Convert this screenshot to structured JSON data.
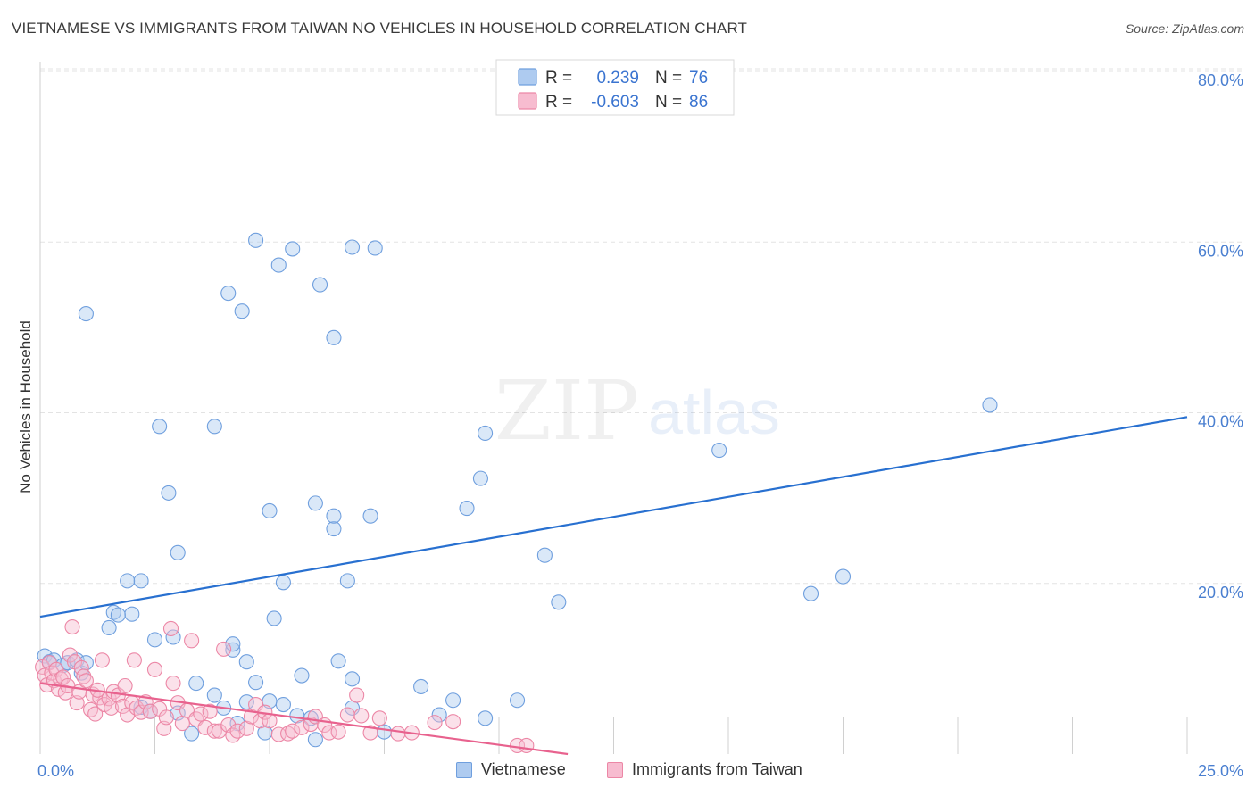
{
  "title": "VIETNAMESE VS IMMIGRANTS FROM TAIWAN NO VEHICLES IN HOUSEHOLD CORRELATION CHART",
  "source": "Source: ZipAtlas.com",
  "watermark": {
    "part1": "ZIP",
    "part2": "atlas"
  },
  "colors": {
    "blue_fill": "#aecbf0",
    "blue_stroke": "#6f9fde",
    "blue_line": "#2870d0",
    "pink_fill": "#f7bcd0",
    "pink_stroke": "#ec87a6",
    "pink_line": "#e8628e",
    "axis_text": "#4a7fd0",
    "grid": "#e3e3e3"
  },
  "legend": {
    "r_label": "R =",
    "n_label": "N =",
    "entries": [
      {
        "r": "0.239",
        "n": "76"
      },
      {
        "r": "-0.603",
        "n": "86"
      }
    ]
  },
  "bottom_legend": [
    "Vietnamese",
    "Immigrants from Taiwan"
  ],
  "chart_data": {
    "type": "scatter",
    "title": "VIETNAMESE VS IMMIGRANTS FROM TAIWAN NO VEHICLES IN HOUSEHOLD CORRELATION CHART",
    "xlabel": "",
    "ylabel": "No Vehicles in Household",
    "xlim": [
      0,
      25
    ],
    "ylim": [
      0,
      80
    ],
    "x_tick_labels": [
      "0.0%",
      "25.0%"
    ],
    "y_ticks": [
      20,
      40,
      60,
      80
    ],
    "y_tick_labels": [
      "20.0%",
      "40.0%",
      "60.0%",
      "80.0%"
    ],
    "grid": true,
    "series": [
      {
        "name": "Vietnamese",
        "r": 0.239,
        "n": 76,
        "trend": [
          [
            0,
            16.1
          ],
          [
            25,
            39.5
          ]
        ],
        "points": [
          [
            1.0,
            51.6
          ],
          [
            2.6,
            38.4
          ],
          [
            2.8,
            30.6
          ],
          [
            2.2,
            20.3
          ],
          [
            1.9,
            20.3
          ],
          [
            3.0,
            23.6
          ],
          [
            2.9,
            13.7
          ],
          [
            2.5,
            13.4
          ],
          [
            2.0,
            16.4
          ],
          [
            1.6,
            16.6
          ],
          [
            1.5,
            14.8
          ],
          [
            1.7,
            16.3
          ],
          [
            3.8,
            38.4
          ],
          [
            4.1,
            54.0
          ],
          [
            4.4,
            51.9
          ],
          [
            4.7,
            60.2
          ],
          [
            5.2,
            57.3
          ],
          [
            5.5,
            59.2
          ],
          [
            6.1,
            55.0
          ],
          [
            6.0,
            29.4
          ],
          [
            6.4,
            26.4
          ],
          [
            6.7,
            20.3
          ],
          [
            5.0,
            28.5
          ],
          [
            5.3,
            20.1
          ],
          [
            5.1,
            15.9
          ],
          [
            4.2,
            12.2
          ],
          [
            4.2,
            12.9
          ],
          [
            4.5,
            10.8
          ],
          [
            4.7,
            8.4
          ],
          [
            6.4,
            48.8
          ],
          [
            6.8,
            59.4
          ],
          [
            7.3,
            59.3
          ],
          [
            6.4,
            27.9
          ],
          [
            7.2,
            27.9
          ],
          [
            5.7,
            9.2
          ],
          [
            6.5,
            10.9
          ],
          [
            6.8,
            8.8
          ],
          [
            9.7,
            37.6
          ],
          [
            9.6,
            32.3
          ],
          [
            9.3,
            28.8
          ],
          [
            11.0,
            23.3
          ],
          [
            11.3,
            17.8
          ],
          [
            14.8,
            35.6
          ],
          [
            16.8,
            18.8
          ],
          [
            17.5,
            20.8
          ],
          [
            20.7,
            40.9
          ],
          [
            0.1,
            11.5
          ],
          [
            0.2,
            10.8
          ],
          [
            0.3,
            11.0
          ],
          [
            0.5,
            10.4
          ],
          [
            0.6,
            10.7
          ],
          [
            0.8,
            11.0
          ],
          [
            0.9,
            9.5
          ],
          [
            1.0,
            10.7
          ],
          [
            2.2,
            5.5
          ],
          [
            2.4,
            5.0
          ],
          [
            3.8,
            6.9
          ],
          [
            3.4,
            8.3
          ],
          [
            4.5,
            6.1
          ],
          [
            5.0,
            6.2
          ],
          [
            5.3,
            5.8
          ],
          [
            5.6,
            4.5
          ],
          [
            5.9,
            4.2
          ],
          [
            6.0,
            1.7
          ],
          [
            6.8,
            5.4
          ],
          [
            7.5,
            2.6
          ],
          [
            8.3,
            7.9
          ],
          [
            9.0,
            6.3
          ],
          [
            9.7,
            4.2
          ],
          [
            10.4,
            6.3
          ],
          [
            3.3,
            2.4
          ],
          [
            4.0,
            5.4
          ],
          [
            4.3,
            3.6
          ],
          [
            4.9,
            2.5
          ],
          [
            3.0,
            4.8
          ],
          [
            8.7,
            4.6
          ]
        ]
      },
      {
        "name": "Immigrants from Taiwan",
        "r": -0.603,
        "n": 86,
        "trend": [
          [
            0,
            8.3
          ],
          [
            11.5,
            0
          ]
        ],
        "points": [
          [
            0.05,
            10.2
          ],
          [
            0.1,
            9.2
          ],
          [
            0.15,
            8.1
          ],
          [
            0.2,
            10.7
          ],
          [
            0.25,
            9.5
          ],
          [
            0.3,
            8.6
          ],
          [
            0.35,
            9.9
          ],
          [
            0.4,
            7.6
          ],
          [
            0.45,
            8.8
          ],
          [
            0.5,
            9.0
          ],
          [
            0.55,
            7.2
          ],
          [
            0.6,
            8.0
          ],
          [
            0.65,
            11.6
          ],
          [
            0.7,
            14.9
          ],
          [
            0.75,
            10.8
          ],
          [
            0.8,
            6.0
          ],
          [
            0.85,
            7.3
          ],
          [
            0.9,
            10.1
          ],
          [
            0.95,
            9.1
          ],
          [
            1.0,
            8.6
          ],
          [
            1.1,
            5.2
          ],
          [
            1.15,
            7.0
          ],
          [
            1.2,
            4.7
          ],
          [
            1.3,
            6.6
          ],
          [
            1.35,
            11.0
          ],
          [
            1.4,
            5.8
          ],
          [
            1.5,
            6.5
          ],
          [
            1.55,
            5.4
          ],
          [
            1.6,
            7.3
          ],
          [
            1.7,
            6.9
          ],
          [
            1.8,
            5.6
          ],
          [
            1.85,
            8.0
          ],
          [
            1.9,
            4.6
          ],
          [
            2.0,
            6.0
          ],
          [
            2.05,
            11.0
          ],
          [
            2.1,
            5.4
          ],
          [
            2.2,
            4.9
          ],
          [
            2.3,
            6.1
          ],
          [
            2.4,
            5.0
          ],
          [
            2.5,
            9.9
          ],
          [
            2.6,
            5.3
          ],
          [
            2.7,
            3.0
          ],
          [
            2.75,
            4.3
          ],
          [
            2.85,
            14.7
          ],
          [
            2.9,
            8.3
          ],
          [
            3.0,
            6.0
          ],
          [
            3.1,
            3.6
          ],
          [
            3.2,
            5.1
          ],
          [
            3.3,
            13.3
          ],
          [
            3.4,
            4.1
          ],
          [
            3.5,
            4.7
          ],
          [
            3.6,
            3.1
          ],
          [
            3.7,
            5.0
          ],
          [
            3.8,
            2.7
          ],
          [
            3.9,
            2.7
          ],
          [
            4.0,
            12.3
          ],
          [
            4.1,
            3.4
          ],
          [
            4.2,
            2.2
          ],
          [
            4.3,
            2.7
          ],
          [
            4.5,
            3.0
          ],
          [
            4.6,
            4.4
          ],
          [
            4.7,
            5.8
          ],
          [
            4.8,
            3.9
          ],
          [
            4.9,
            4.9
          ],
          [
            5.0,
            3.9
          ],
          [
            5.2,
            2.3
          ],
          [
            5.4,
            2.4
          ],
          [
            5.5,
            2.7
          ],
          [
            5.7,
            3.1
          ],
          [
            5.9,
            3.5
          ],
          [
            6.0,
            4.4
          ],
          [
            6.2,
            3.4
          ],
          [
            6.3,
            2.5
          ],
          [
            6.5,
            2.6
          ],
          [
            6.7,
            4.6
          ],
          [
            6.9,
            6.9
          ],
          [
            7.0,
            4.5
          ],
          [
            7.2,
            2.5
          ],
          [
            7.4,
            4.2
          ],
          [
            7.8,
            2.4
          ],
          [
            8.1,
            2.5
          ],
          [
            8.6,
            3.7
          ],
          [
            9.0,
            3.8
          ],
          [
            10.4,
            1.0
          ],
          [
            10.6,
            1.0
          ],
          [
            1.25,
            7.5
          ]
        ]
      }
    ]
  }
}
